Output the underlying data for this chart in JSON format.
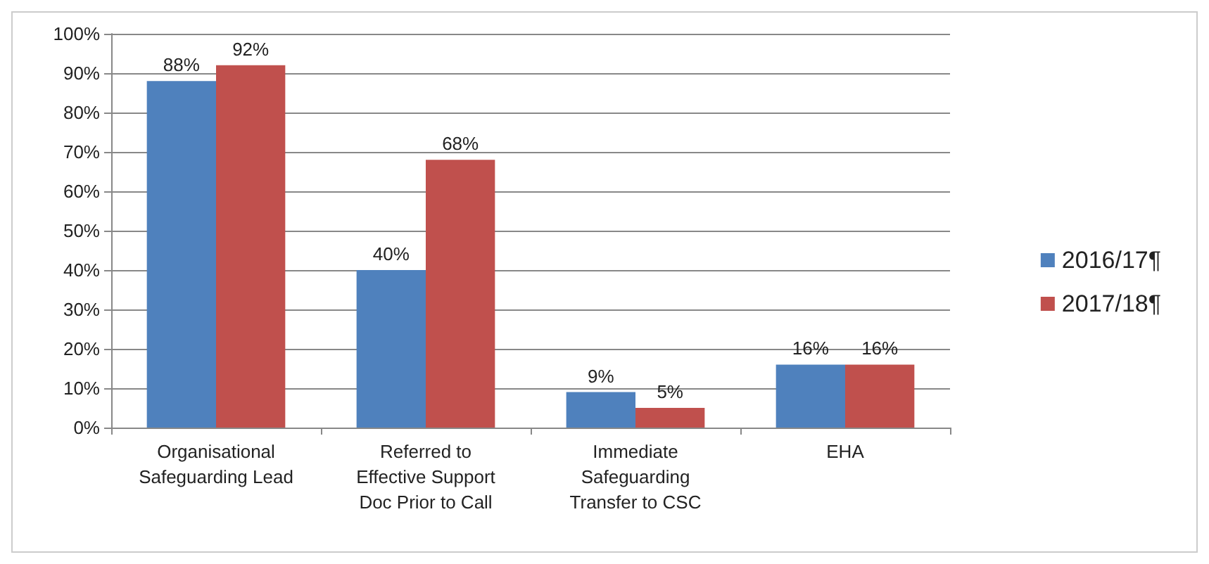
{
  "chart_data": {
    "type": "bar",
    "categories": [
      "Organisational\nSafeguarding Lead",
      "Referred to\nEffective Support\nDoc Prior to Call",
      "Immediate\nSafeguarding\nTransfer to CSC",
      "EHA"
    ],
    "series": [
      {
        "name": "2016/17¶",
        "color": "#4f81bd",
        "values": [
          88,
          40,
          9,
          16
        ],
        "value_labels": [
          "88%",
          "40%",
          "9%",
          "16%"
        ]
      },
      {
        "name": "2017/18¶",
        "color": "#c0504d",
        "values": [
          92,
          68,
          5,
          16
        ],
        "value_labels": [
          "92%",
          "68%",
          "5%",
          "16%"
        ]
      }
    ],
    "ylim": [
      0,
      100
    ],
    "yticks": [
      {
        "value": 0,
        "label": "0%"
      },
      {
        "value": 10,
        "label": "10%"
      },
      {
        "value": 20,
        "label": "20%"
      },
      {
        "value": 30,
        "label": "30%"
      },
      {
        "value": 40,
        "label": "40%"
      },
      {
        "value": 50,
        "label": "50%"
      },
      {
        "value": 60,
        "label": "60%"
      },
      {
        "value": 70,
        "label": "70%"
      },
      {
        "value": 80,
        "label": "80%"
      },
      {
        "value": 90,
        "label": "90%"
      },
      {
        "value": 100,
        "label": "100%"
      }
    ],
    "grid": "y",
    "legend": "right"
  }
}
